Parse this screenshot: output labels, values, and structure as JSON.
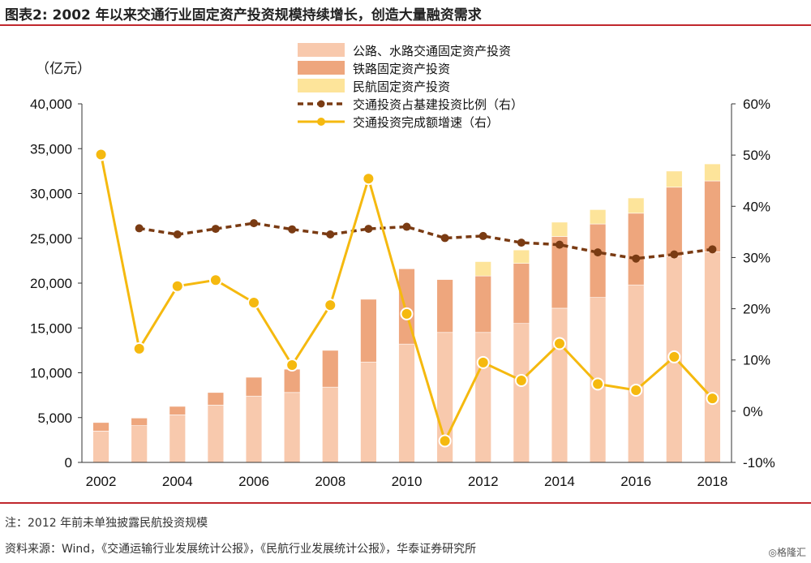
{
  "figure": {
    "title": "图表2:  2002 年以来交通行业固定资产投资规模持续增长，创造大量融资需求",
    "note": "注：2012 年前未单独披露民航投资规模",
    "source": "资料来源：Wind，《交通运输行业发展统计公报》，《民航行业发展统计公报》，华泰证券研究所",
    "watermark": "◎格隆汇"
  },
  "colors": {
    "highway": "#f8c9ad",
    "railway": "#eea67d",
    "aviation": "#fde49a",
    "share_line": "#7a3b13",
    "growth_line": "#f5b90f",
    "rule": "#c0272d"
  },
  "chart_data": {
    "type": "bar",
    "title": "2002 年以来交通行业固定资产投资规模持续增长，创造大量融资需求",
    "ylabel": "（亿元）",
    "ylim": [
      0,
      40000
    ],
    "y_ticks": [
      "0",
      "5,000",
      "10,000",
      "15,000",
      "20,000",
      "25,000",
      "30,000",
      "35,000",
      "40,000"
    ],
    "y2lim": [
      -10,
      60
    ],
    "y2_ticks": [
      "-10%",
      "0%",
      "10%",
      "20%",
      "30%",
      "40%",
      "50%",
      "60%"
    ],
    "x_ticks": [
      "2002",
      "2004",
      "2006",
      "2008",
      "2010",
      "2012",
      "2014",
      "2016",
      "2018"
    ],
    "categories": [
      2002,
      2003,
      2004,
      2005,
      2006,
      2007,
      2008,
      2009,
      2010,
      2011,
      2012,
      2013,
      2014,
      2015,
      2016,
      2017,
      2018
    ],
    "series": [
      {
        "name": "公路、水路交通固定资产投资",
        "kind": "bar",
        "stack": "total",
        "values": [
          3500,
          4100,
          5300,
          6400,
          7400,
          7800,
          8400,
          11200,
          13200,
          14500,
          14500,
          15500,
          17200,
          18400,
          19800,
          23000,
          23500
        ]
      },
      {
        "name": "铁路固定资产投资",
        "kind": "bar",
        "stack": "total",
        "values": [
          950,
          850,
          950,
          1400,
          2100,
          2600,
          4100,
          7000,
          8400,
          5900,
          6300,
          6700,
          8000,
          8200,
          8000,
          7700,
          7900
        ]
      },
      {
        "name": "民航固定资产投资",
        "kind": "bar",
        "stack": "total",
        "values": [
          0,
          0,
          0,
          0,
          0,
          0,
          0,
          0,
          0,
          0,
          1600,
          1500,
          1600,
          1600,
          1700,
          1800,
          1900
        ]
      },
      {
        "name": "交通投资占基建投资比例（右）",
        "kind": "line",
        "axis": "right",
        "style": "dashed",
        "values": [
          null,
          35.7,
          34.5,
          35.6,
          36.7,
          35.5,
          34.5,
          35.6,
          36.0,
          33.8,
          34.2,
          32.9,
          32.5,
          31.0,
          29.8,
          30.6,
          31.6
        ]
      },
      {
        "name": "交通投资完成额增速（右）",
        "kind": "line",
        "axis": "right",
        "style": "solid",
        "values": [
          50.1,
          12.2,
          24.4,
          25.6,
          21.2,
          9.0,
          20.7,
          45.4,
          19.0,
          -5.8,
          9.5,
          6.0,
          13.2,
          5.3,
          4.1,
          10.6,
          2.5
        ]
      }
    ]
  }
}
